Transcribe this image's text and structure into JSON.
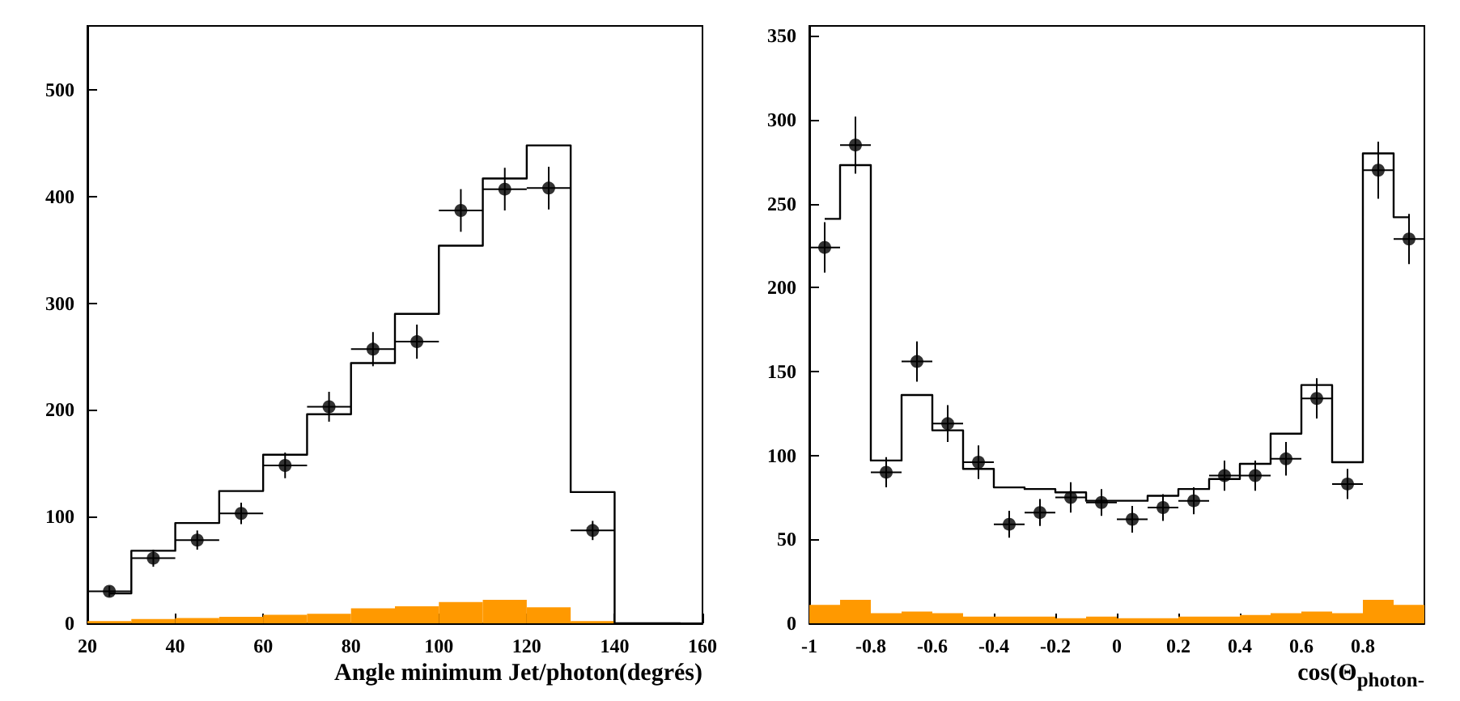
{
  "chart_data": [
    {
      "type": "histogram",
      "xlabel": "Angle minimum Jet/photon(degrés)",
      "bins": [
        20,
        30,
        40,
        50,
        60,
        70,
        80,
        90,
        100,
        110,
        120,
        130,
        140,
        150,
        160
      ],
      "xlim": [
        20,
        160
      ],
      "xticks": [
        20,
        40,
        60,
        80,
        100,
        120,
        140,
        160
      ],
      "ylim": [
        0,
        560
      ],
      "yticks": [
        0,
        100,
        200,
        300,
        400,
        500
      ],
      "grid": false,
      "series": [
        {
          "color": "#ff9900",
          "values": [
            2,
            4,
            5,
            6,
            8,
            9,
            14,
            16,
            20,
            22,
            15,
            2,
            0,
            0
          ]
        },
        {
          "type": "step",
          "color": "#000000",
          "x": [
            25,
            35,
            45,
            55,
            65,
            75,
            85,
            95,
            105,
            115,
            125,
            135,
            145,
            155
          ],
          "values": [
            28,
            68,
            94,
            124,
            158,
            196,
            244,
            290,
            354,
            417,
            448,
            123,
            0,
            0
          ]
        },
        {
          "type": "scatter",
          "color": "#000000",
          "marker": "circle",
          "x": [
            25,
            35,
            45,
            55,
            65,
            75,
            85,
            95,
            105,
            115,
            125,
            135
          ],
          "values": [
            30,
            61,
            78,
            103,
            148,
            203,
            257,
            264,
            387,
            407,
            408,
            87
          ],
          "errors": [
            5,
            8,
            9,
            10,
            12,
            14,
            16,
            16,
            20,
            20,
            20,
            9
          ],
          "xerrors": [
            5,
            5,
            5,
            5,
            5,
            5,
            5,
            5,
            5,
            5,
            5,
            5
          ]
        }
      ]
    },
    {
      "type": "histogram",
      "xlabel": "cos(Θ$_{photon-}$",
      "bins": [
        -1,
        -0.9,
        -0.8,
        -0.7,
        -0.6,
        -0.5,
        -0.4,
        -0.3,
        -0.2,
        -0.1,
        0,
        0.1,
        0.2,
        0.3,
        0.4,
        0.5,
        0.6,
        0.7,
        0.8,
        0.9,
        1
      ],
      "xlim": [
        -1,
        1
      ],
      "xticks": [
        -1,
        -0.8,
        -0.6,
        -0.4,
        -0.2,
        0,
        0.2,
        0.4,
        0.6,
        0.8
      ],
      "ylim": [
        0,
        356
      ],
      "yticks": [
        0,
        50,
        100,
        150,
        200,
        250,
        300,
        350
      ],
      "grid": false,
      "series": [
        {
          "color": "#ff9900",
          "values": [
            11,
            14,
            6,
            7,
            6,
            4,
            4,
            4,
            3,
            4,
            3,
            3,
            4,
            4,
            5,
            6,
            7,
            6,
            14,
            11
          ]
        },
        {
          "type": "step",
          "color": "#000000",
          "x": [
            -0.95,
            -0.85,
            -0.75,
            -0.65,
            -0.55,
            -0.45,
            -0.35,
            -0.25,
            -0.15,
            -0.05,
            0.05,
            0.15,
            0.25,
            0.35,
            0.45,
            0.55,
            0.65,
            0.75,
            0.85,
            0.95
          ],
          "values": [
            241,
            273,
            97,
            136,
            115,
            92,
            81,
            80,
            78,
            73,
            73,
            76,
            80,
            86,
            95,
            113,
            142,
            96,
            280,
            242
          ]
        },
        {
          "type": "scatter",
          "color": "#000000",
          "marker": "circle",
          "x": [
            -0.95,
            -0.85,
            -0.75,
            -0.65,
            -0.55,
            -0.45,
            -0.35,
            -0.25,
            -0.15,
            -0.05,
            0.05,
            0.15,
            0.25,
            0.35,
            0.45,
            0.55,
            0.65,
            0.75,
            0.85,
            0.95
          ],
          "values": [
            224,
            285,
            90,
            156,
            119,
            96,
            59,
            66,
            75,
            72,
            62,
            69,
            73,
            88,
            88,
            98,
            134,
            83,
            270,
            229
          ],
          "errors": [
            15,
            17,
            9,
            12,
            11,
            10,
            8,
            8,
            9,
            8,
            8,
            8,
            8,
            9,
            9,
            10,
            12,
            9,
            17,
            15
          ],
          "xerrors": [
            0.05,
            0.05,
            0.05,
            0.05,
            0.05,
            0.05,
            0.05,
            0.05,
            0.05,
            0.05,
            0.05,
            0.05,
            0.05,
            0.05,
            0.05,
            0.05,
            0.05,
            0.05,
            0.05,
            0.05
          ]
        }
      ]
    }
  ]
}
